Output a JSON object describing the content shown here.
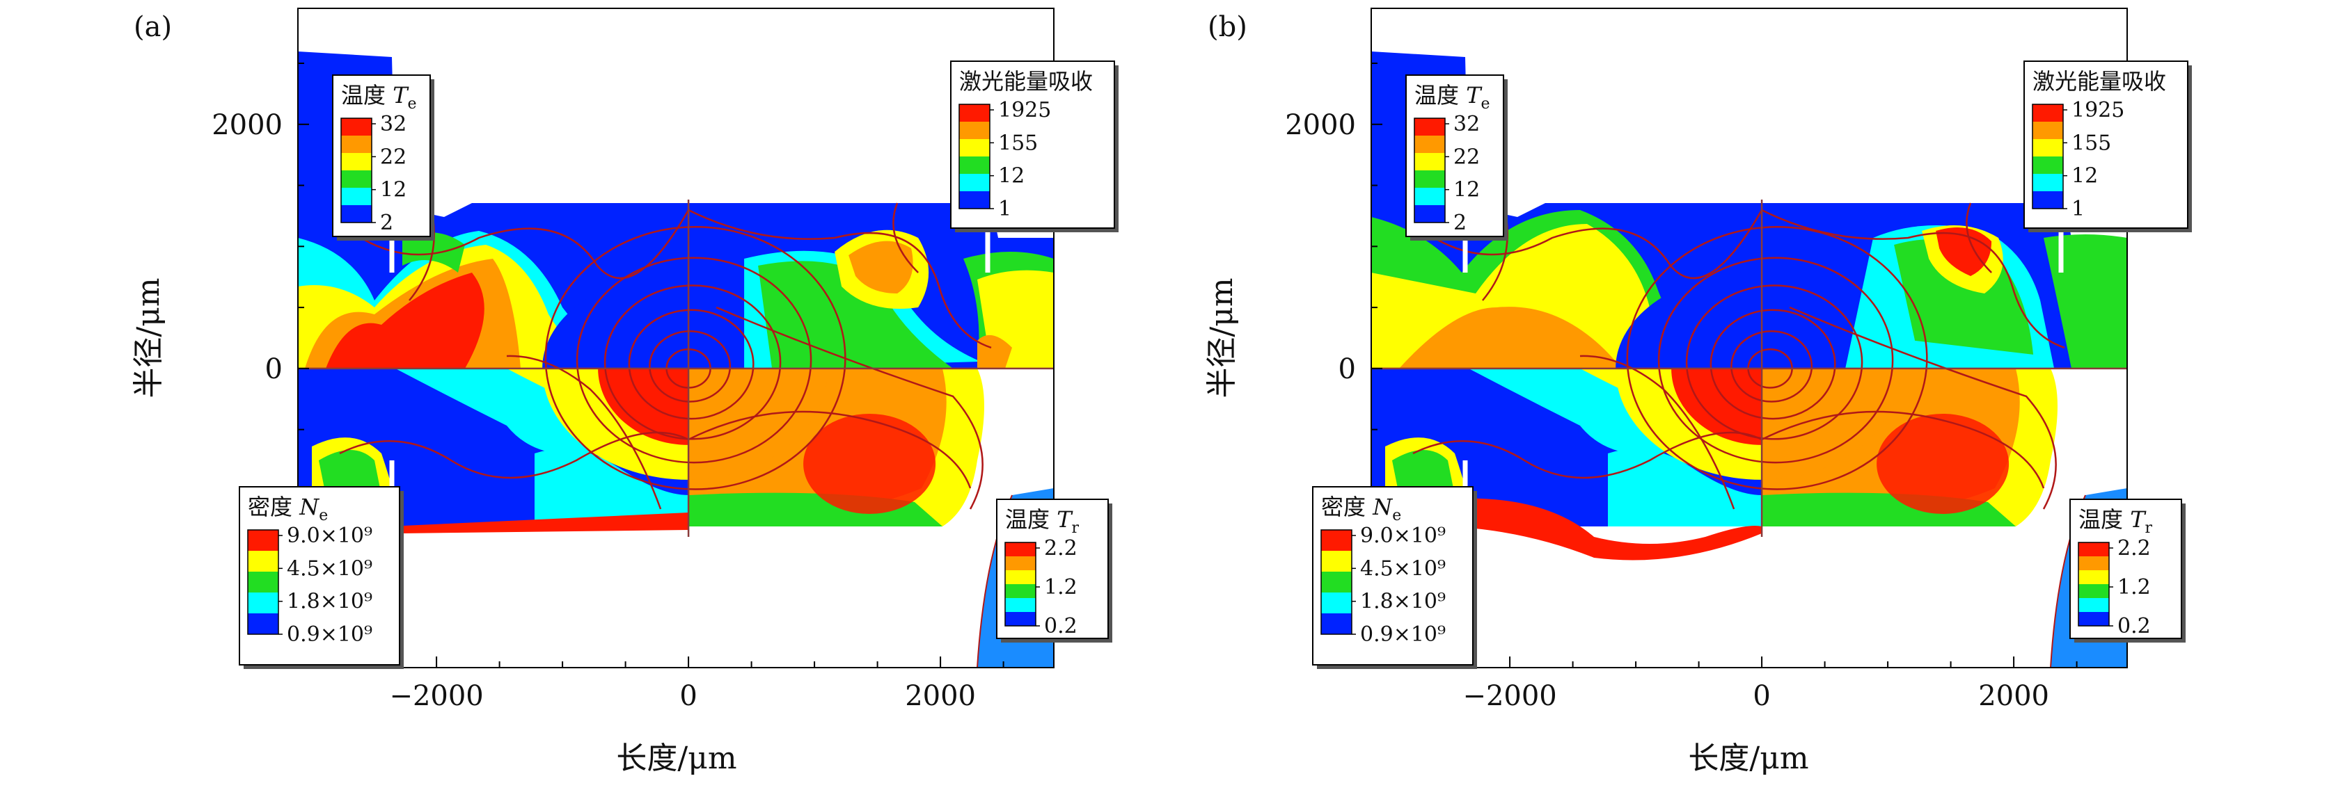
{
  "figure": {
    "type": "composite-simulation-map",
    "panels": 2
  },
  "colors": {
    "blue": "#0022ff",
    "lightblue": "#1a8cff",
    "cyan": "#00ffff",
    "green": "#22dd22",
    "yellow": "#ffff00",
    "orange": "#ff9900",
    "red": "#ff1a00",
    "contour": "#b01818"
  },
  "chart_data": [
    {
      "type": "heatmap",
      "panel_label": "(a)",
      "xlabel": "长度/μm",
      "ylabel": "半径/μm",
      "xlim": [
        -3100,
        2900
      ],
      "ylim": [
        -2450,
        2950
      ],
      "xticks": [
        -2000,
        0,
        2000
      ],
      "xtick_labels": [
        "−2000",
        "0",
        "2000"
      ],
      "yticks": [
        0,
        2000
      ],
      "ytick_labels": [
        "0",
        "2000"
      ],
      "quadrants": [
        "Te (top-left)",
        "laser energy absorption (top-right)",
        "Ne (bottom-left)",
        "Tr (bottom-right)"
      ],
      "legends": [
        {
          "id": "te",
          "title": "温度 ",
          "title_italic": "T",
          "title_sub": "e",
          "placement": "top-left",
          "labels": [
            "32",
            "22",
            "12",
            "2"
          ]
        },
        {
          "id": "laser",
          "title": "激光能量吸收",
          "placement": "top-right",
          "labels": [
            "1925",
            "155",
            "12",
            "1"
          ]
        },
        {
          "id": "ne",
          "title": "密度 ",
          "title_italic": "N",
          "title_sub": "e",
          "placement": "bottom-left",
          "labels": [
            "9.0×10⁹",
            "4.5×10⁹",
            "1.8×10⁹",
            "0.9×10⁹"
          ]
        },
        {
          "id": "tr",
          "title": "温度 ",
          "title_italic": "T",
          "title_sub": "r",
          "placement": "bottom-right",
          "labels": [
            "2.2",
            "1.2",
            "0.2"
          ]
        }
      ]
    },
    {
      "type": "heatmap",
      "panel_label": "(b)",
      "xlabel": "长度/μm",
      "ylabel": "半径/μm",
      "xlim": [
        -3100,
        2900
      ],
      "ylim": [
        -2450,
        2950
      ],
      "xticks": [
        -2000,
        0,
        2000
      ],
      "xtick_labels": [
        "−2000",
        "0",
        "2000"
      ],
      "yticks": [
        0,
        2000
      ],
      "ytick_labels": [
        "0",
        "2000"
      ],
      "quadrants": [
        "Te (top-left)",
        "laser energy absorption (top-right)",
        "Ne (bottom-left)",
        "Tr (bottom-right)"
      ],
      "legends": [
        {
          "id": "te",
          "title": "温度 ",
          "title_italic": "T",
          "title_sub": "e",
          "placement": "top-left",
          "labels": [
            "32",
            "22",
            "12",
            "2"
          ]
        },
        {
          "id": "laser",
          "title": "激光能量吸收",
          "placement": "top-right",
          "labels": [
            "1925",
            "155",
            "12",
            "1"
          ]
        },
        {
          "id": "ne",
          "title": "密度 ",
          "title_italic": "N",
          "title_sub": "e",
          "placement": "bottom-left",
          "labels": [
            "9.0×10⁹",
            "4.5×10⁹",
            "1.8×10⁹",
            "0.9×10⁹"
          ]
        },
        {
          "id": "tr",
          "title": "温度 ",
          "title_italic": "T",
          "title_sub": "r",
          "placement": "bottom-right",
          "labels": [
            "2.2",
            "1.2",
            "0.2"
          ]
        }
      ]
    }
  ]
}
